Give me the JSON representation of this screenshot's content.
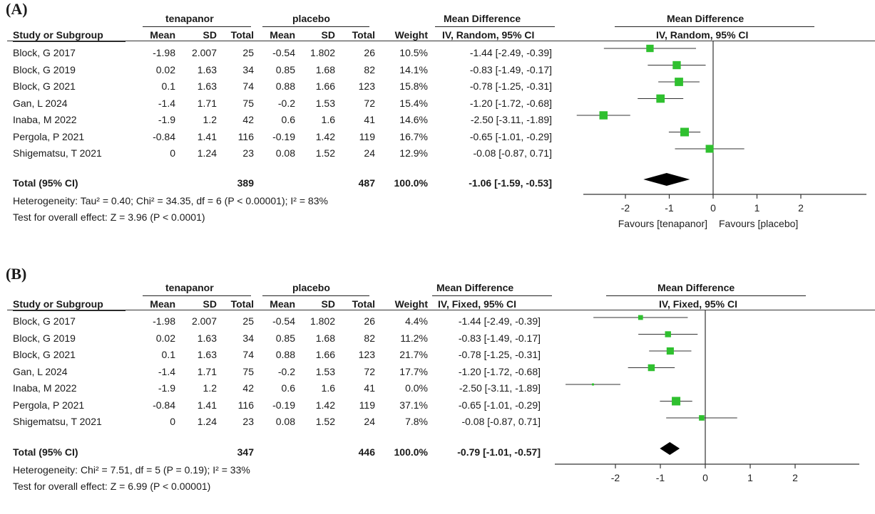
{
  "colors": {
    "point": "#2fc02f",
    "diamond": "#000000",
    "line": "#333333"
  },
  "chart_data": [
    {
      "type": "forest",
      "panel_label": "(A)",
      "group_headers": {
        "experimental": "tenapanor",
        "control": "placebo",
        "effect_table": "Mean Difference",
        "effect_plot": "Mean Difference"
      },
      "columns": [
        "Study or Subgroup",
        "Mean",
        "SD",
        "Total",
        "Mean",
        "SD",
        "Total",
        "Weight",
        "IV, Random, 95% CI",
        "IV, Random, 95% CI"
      ],
      "rows": [
        {
          "study": "Block, G 2017",
          "m1": "-1.98",
          "sd1": "2.007",
          "n1": "25",
          "m2": "-0.54",
          "sd2": "1.802",
          "n2": "26",
          "weight": "10.5%",
          "ci_text": "-1.44 [-2.49, -0.39]",
          "md": -1.44,
          "lo": -2.49,
          "hi": -0.39,
          "w": 10.5
        },
        {
          "study": "Block, G 2019",
          "m1": "0.02",
          "sd1": "1.63",
          "n1": "34",
          "m2": "0.85",
          "sd2": "1.68",
          "n2": "82",
          "weight": "14.1%",
          "ci_text": "-0.83 [-1.49, -0.17]",
          "md": -0.83,
          "lo": -1.49,
          "hi": -0.17,
          "w": 14.1
        },
        {
          "study": "Block, G 2021",
          "m1": "0.1",
          "sd1": "1.63",
          "n1": "74",
          "m2": "0.88",
          "sd2": "1.66",
          "n2": "123",
          "weight": "15.8%",
          "ci_text": "-0.78 [-1.25, -0.31]",
          "md": -0.78,
          "lo": -1.25,
          "hi": -0.31,
          "w": 15.8
        },
        {
          "study": "Gan, L 2024",
          "m1": "-1.4",
          "sd1": "1.71",
          "n1": "75",
          "m2": "-0.2",
          "sd2": "1.53",
          "n2": "72",
          "weight": "15.4%",
          "ci_text": "-1.20 [-1.72, -0.68]",
          "md": -1.2,
          "lo": -1.72,
          "hi": -0.68,
          "w": 15.4
        },
        {
          "study": "Inaba, M 2022",
          "m1": "-1.9",
          "sd1": "1.2",
          "n1": "42",
          "m2": "0.6",
          "sd2": "1.6",
          "n2": "41",
          "weight": "14.6%",
          "ci_text": "-2.50 [-3.11, -1.89]",
          "md": -2.5,
          "lo": -3.11,
          "hi": -1.89,
          "w": 14.6
        },
        {
          "study": "Pergola, P 2021",
          "m1": "-0.84",
          "sd1": "1.41",
          "n1": "116",
          "m2": "-0.19",
          "sd2": "1.42",
          "n2": "119",
          "weight": "16.7%",
          "ci_text": "-0.65 [-1.01, -0.29]",
          "md": -0.65,
          "lo": -1.01,
          "hi": -0.29,
          "w": 16.7
        },
        {
          "study": "Shigematsu, T 2021",
          "m1": "0",
          "sd1": "1.24",
          "n1": "23",
          "m2": "0.08",
          "sd2": "1.52",
          "n2": "24",
          "weight": "12.9%",
          "ci_text": "-0.08 [-0.87, 0.71]",
          "md": -0.08,
          "lo": -0.87,
          "hi": 0.71,
          "w": 12.9
        }
      ],
      "total": {
        "label": "Total (95% CI)",
        "n1": "389",
        "n2": "487",
        "weight": "100.0%",
        "ci_text": "-1.06 [-1.59, -0.53]",
        "md": -1.06,
        "lo": -1.59,
        "hi": -0.53
      },
      "heterogeneity": "Heterogeneity: Tau² = 0.40; Chi² = 34.35, df = 6 (P < 0.00001); I² = 83%",
      "overall_effect": "Test for overall effect: Z = 3.96 (P < 0.0001)",
      "x_ticks": [
        -2,
        -1,
        0,
        1,
        2
      ],
      "x_tick_labels": [
        "-2",
        "-1",
        "0",
        "1",
        "2"
      ],
      "xlim": [
        -3.2,
        3.2
      ],
      "favours_left": "Favours [tenapanor]",
      "favours_right": "Favours [placebo]"
    },
    {
      "type": "forest",
      "panel_label": "(B)",
      "group_headers": {
        "experimental": "tenapanor",
        "control": "placebo",
        "effect_table": "Mean Difference",
        "effect_plot": "Mean Difference"
      },
      "columns": [
        "Study or Subgroup",
        "Mean",
        "SD",
        "Total",
        "Mean",
        "SD",
        "Total",
        "Weight",
        "IV, Fixed, 95% CI",
        "IV, Fixed, 95% CI"
      ],
      "rows": [
        {
          "study": "Block, G 2017",
          "m1": "-1.98",
          "sd1": "2.007",
          "n1": "25",
          "m2": "-0.54",
          "sd2": "1.802",
          "n2": "26",
          "weight": "4.4%",
          "ci_text": "-1.44 [-2.49, -0.39]",
          "md": -1.44,
          "lo": -2.49,
          "hi": -0.39,
          "w": 4.4
        },
        {
          "study": "Block, G 2019",
          "m1": "0.02",
          "sd1": "1.63",
          "n1": "34",
          "m2": "0.85",
          "sd2": "1.68",
          "n2": "82",
          "weight": "11.2%",
          "ci_text": "-0.83 [-1.49, -0.17]",
          "md": -0.83,
          "lo": -1.49,
          "hi": -0.17,
          "w": 11.2
        },
        {
          "study": "Block, G 2021",
          "m1": "0.1",
          "sd1": "1.63",
          "n1": "74",
          "m2": "0.88",
          "sd2": "1.66",
          "n2": "123",
          "weight": "21.7%",
          "ci_text": "-0.78 [-1.25, -0.31]",
          "md": -0.78,
          "lo": -1.25,
          "hi": -0.31,
          "w": 21.7
        },
        {
          "study": "Gan, L 2024",
          "m1": "-1.4",
          "sd1": "1.71",
          "n1": "75",
          "m2": "-0.2",
          "sd2": "1.53",
          "n2": "72",
          "weight": "17.7%",
          "ci_text": "-1.20 [-1.72, -0.68]",
          "md": -1.2,
          "lo": -1.72,
          "hi": -0.68,
          "w": 17.7
        },
        {
          "study": "Inaba, M 2022",
          "m1": "-1.9",
          "sd1": "1.2",
          "n1": "42",
          "m2": "0.6",
          "sd2": "1.6",
          "n2": "41",
          "weight": "0.0%",
          "ci_text": "-2.50 [-3.11, -1.89]",
          "md": -2.5,
          "lo": -3.11,
          "hi": -1.89,
          "w": 0.0
        },
        {
          "study": "Pergola, P 2021",
          "m1": "-0.84",
          "sd1": "1.41",
          "n1": "116",
          "m2": "-0.19",
          "sd2": "1.42",
          "n2": "119",
          "weight": "37.1%",
          "ci_text": "-0.65 [-1.01, -0.29]",
          "md": -0.65,
          "lo": -1.01,
          "hi": -0.29,
          "w": 37.1
        },
        {
          "study": "Shigematsu, T 2021",
          "m1": "0",
          "sd1": "1.24",
          "n1": "23",
          "m2": "0.08",
          "sd2": "1.52",
          "n2": "24",
          "weight": "7.8%",
          "ci_text": "-0.08 [-0.87, 0.71]",
          "md": -0.08,
          "lo": -0.87,
          "hi": 0.71,
          "w": 7.8
        }
      ],
      "total": {
        "label": "Total (95% CI)",
        "n1": "347",
        "n2": "446",
        "weight": "100.0%",
        "ci_text": "-0.79 [-1.01, -0.57]",
        "md": -0.79,
        "lo": -1.01,
        "hi": -0.57
      },
      "heterogeneity": "Heterogeneity: Chi² = 7.51, df = 5 (P = 0.19); I² = 33%",
      "overall_effect": "Test for overall effect: Z = 6.99 (P < 0.00001)",
      "x_ticks": [
        -2,
        -1,
        0,
        1,
        2
      ],
      "x_tick_labels": [
        "-2",
        "-1",
        "0",
        "1",
        "2"
      ],
      "xlim": [
        -3.4,
        3.4
      ],
      "favours_left": "",
      "favours_right": ""
    }
  ]
}
